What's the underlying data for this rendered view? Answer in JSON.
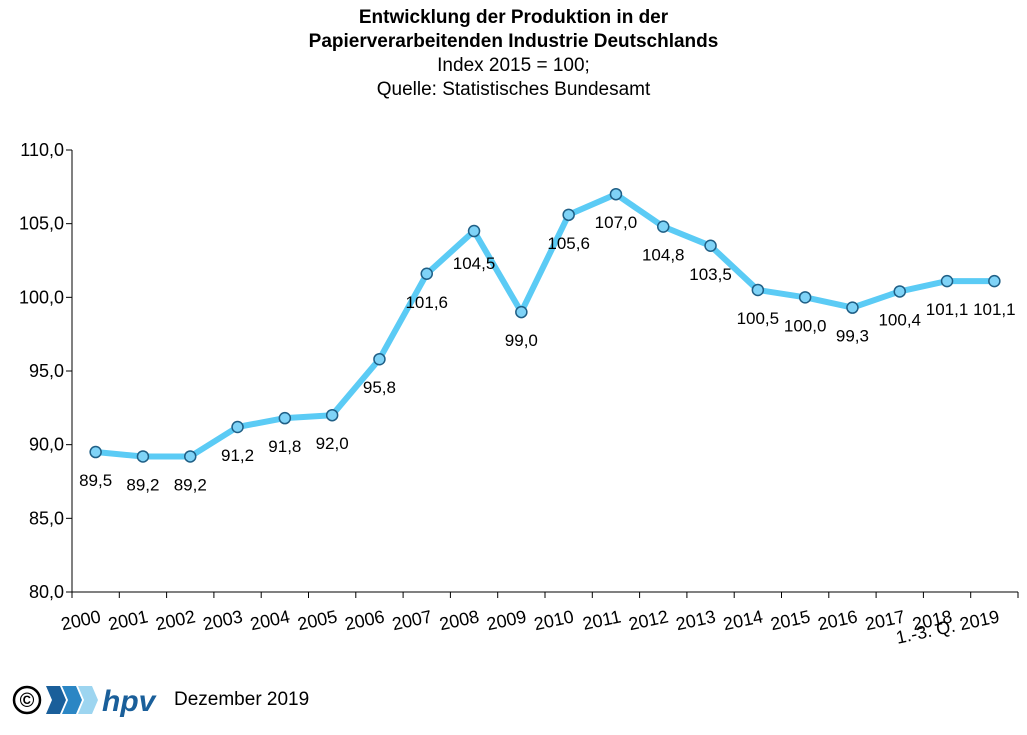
{
  "chart_data": {
    "type": "line",
    "title_line1": "Entwicklung der Produktion in der",
    "title_line2": "Papierverarbeitenden Industrie Deutschlands",
    "subtitle_line1": "Index 2015 = 100;",
    "subtitle_line2": "Quelle: Statistisches Bundesamt",
    "xlabel": "",
    "ylabel": "",
    "categories": [
      "2000",
      "2001",
      "2002",
      "2003",
      "2004",
      "2005",
      "2006",
      "2007",
      "2008",
      "2009",
      "2010",
      "2011",
      "2012",
      "2013",
      "2014",
      "2015",
      "2016",
      "2017",
      "2018",
      "1.-3. Q. 2019"
    ],
    "values": [
      89.5,
      89.2,
      89.2,
      91.2,
      91.8,
      92.0,
      95.8,
      101.6,
      104.5,
      99.0,
      105.6,
      107.0,
      104.8,
      103.5,
      100.5,
      100.0,
      99.3,
      100.4,
      101.1,
      101.1
    ],
    "value_labels": [
      "89,5",
      "89,2",
      "89,2",
      "91,2",
      "91,8",
      "92,0",
      "95,8",
      "101,6",
      "104,5",
      "99,0",
      "105,6",
      "107,0",
      "104,8",
      "103,5",
      "100,5",
      "100,0",
      "99,3",
      "100,4",
      "101,1",
      "101,1"
    ],
    "ylim": [
      80,
      110
    ],
    "yticks": [
      80,
      85,
      90,
      95,
      100,
      105,
      110
    ],
    "ytick_labels": [
      "80,0",
      "85,0",
      "90,0",
      "95,0",
      "100,0",
      "105,0",
      "110,0"
    ],
    "grid": false,
    "legend": "none",
    "line_color": "#5BCBF5",
    "marker_color": "#7FD3F7",
    "marker_edge": "#1f5f86"
  },
  "footer": {
    "copyright_symbol": "©",
    "logo_text": "hpv",
    "date": "Dezember 2019"
  }
}
